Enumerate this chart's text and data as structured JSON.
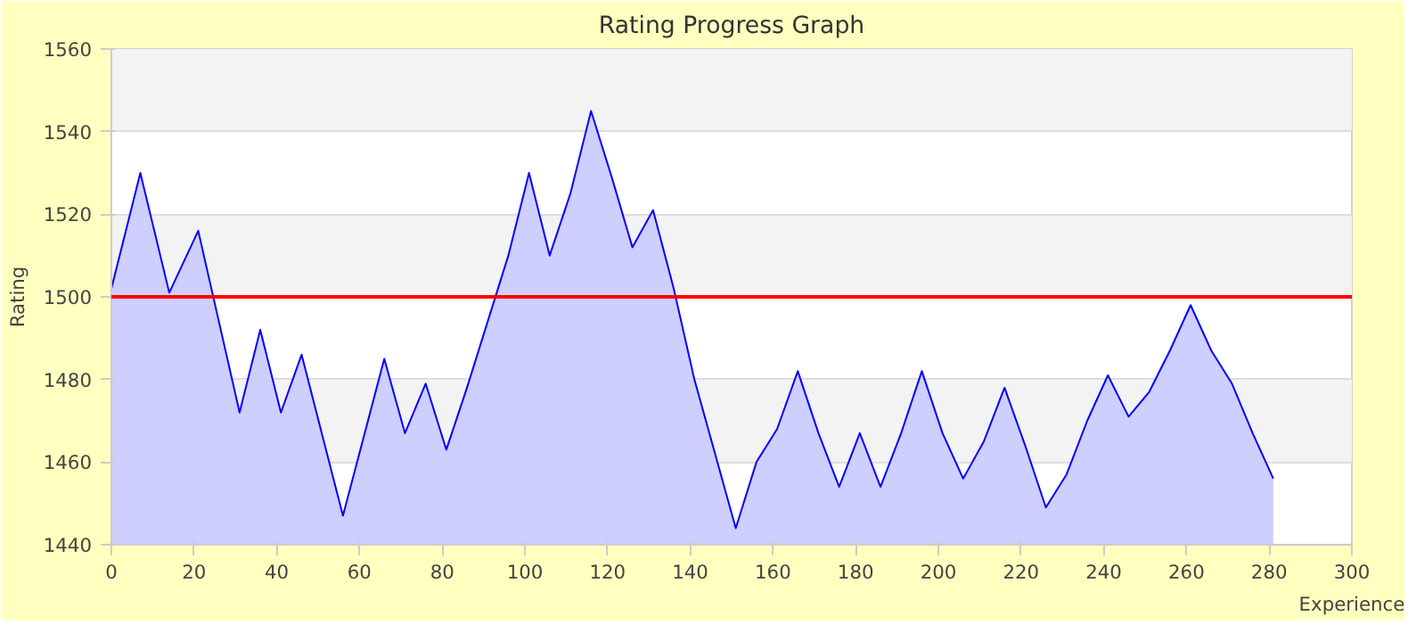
{
  "chart_data": {
    "type": "area",
    "title": "Rating Progress Graph",
    "xlabel": "Experience",
    "ylabel": "Rating",
    "x": [
      0,
      7,
      14,
      21,
      31,
      36,
      41,
      46,
      56,
      66,
      71,
      76,
      81,
      86,
      96,
      101,
      106,
      111,
      116,
      121,
      126,
      131,
      136,
      141,
      151,
      156,
      161,
      166,
      171,
      176,
      181,
      186,
      191,
      196,
      201,
      206,
      211,
      216,
      221,
      226,
      231,
      236,
      241,
      246,
      251,
      256,
      261,
      266,
      271,
      276,
      281
    ],
    "series": [
      {
        "color": "#0000ff",
        "values": [
          1502,
          1530,
          1501,
          1516,
          1472,
          1492,
          1472,
          1486,
          1447,
          1485,
          1467,
          1479,
          1463,
          1478,
          1510,
          1530,
          1510,
          1525,
          1545,
          1529,
          1512,
          1521,
          1502,
          1480,
          1444,
          1460,
          1468,
          1482,
          1467,
          1454,
          1467,
          1454,
          1467,
          1482,
          1467,
          1456,
          1465,
          1478,
          1464,
          1449,
          1457,
          1470,
          1481,
          1471,
          1477,
          1487,
          1498,
          1487,
          1479,
          1467,
          1456
        ]
      }
    ],
    "xlim": [
      0,
      300
    ],
    "ylim": [
      1440,
      1560
    ],
    "xticks": [
      0,
      20,
      40,
      60,
      80,
      100,
      120,
      140,
      160,
      180,
      200,
      220,
      240,
      260,
      280,
      300
    ],
    "yticks": [
      1440,
      1460,
      1480,
      1500,
      1520,
      1540,
      1560
    ],
    "grid": "y",
    "ref_lines": [
      {
        "axis": "y",
        "value": 1500,
        "color": "#ff0000"
      }
    ]
  }
}
